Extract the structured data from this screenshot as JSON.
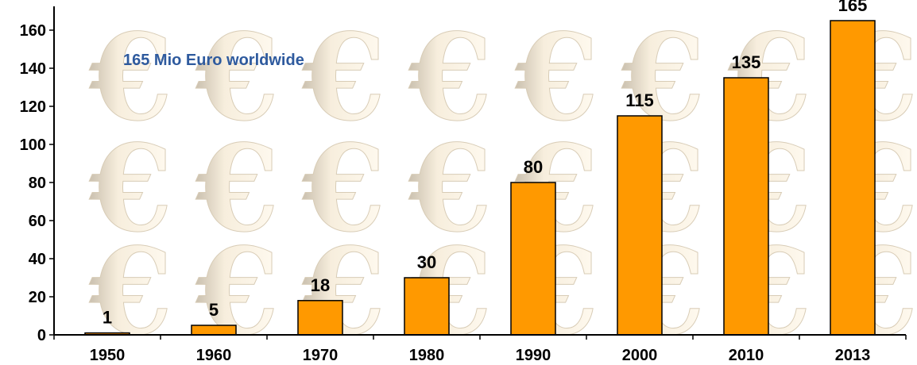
{
  "chart_data": {
    "type": "bar",
    "categories": [
      "1950",
      "1960",
      "1970",
      "1980",
      "1990",
      "2000",
      "2010",
      "2013"
    ],
    "values": [
      1,
      5,
      18,
      30,
      80,
      115,
      135,
      165
    ],
    "data_labels": [
      "1",
      "5",
      "18",
      "30",
      "80",
      "115",
      "135",
      "165"
    ],
    "annotation": "165 Mio Euro worldwide",
    "ylim": [
      0,
      170
    ],
    "yticks": [
      0,
      20,
      40,
      60,
      80,
      100,
      120,
      140,
      160
    ],
    "grid": false,
    "legend": "none",
    "background_icon": "euro-icon",
    "colors": {
      "bar_fill": "#ff9900",
      "bar_stroke": "#000000",
      "annotation": "#2e5a9e",
      "euro_watermark": "#f1e6d0"
    }
  }
}
